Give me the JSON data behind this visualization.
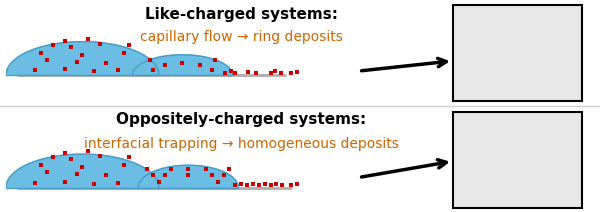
{
  "top_title": "Like-charged systems:",
  "top_subtitle": "capillary flow → ring deposits",
  "bottom_title": "Oppositely-charged systems:",
  "bottom_subtitle": "interfacial trapping → homogeneous deposits",
  "bg_color": "#ffffff",
  "divider_color": "#cccccc",
  "drop_color": "#6bbde3",
  "drop_edge_color": "#4a9cc7",
  "surface_color": "#b0b0b0",
  "particle_color": "#cc0000",
  "title_color": "#000000",
  "subtitle_color": "#cc6600",
  "title_fontsize": 11,
  "subtitle_fontsize": 10
}
